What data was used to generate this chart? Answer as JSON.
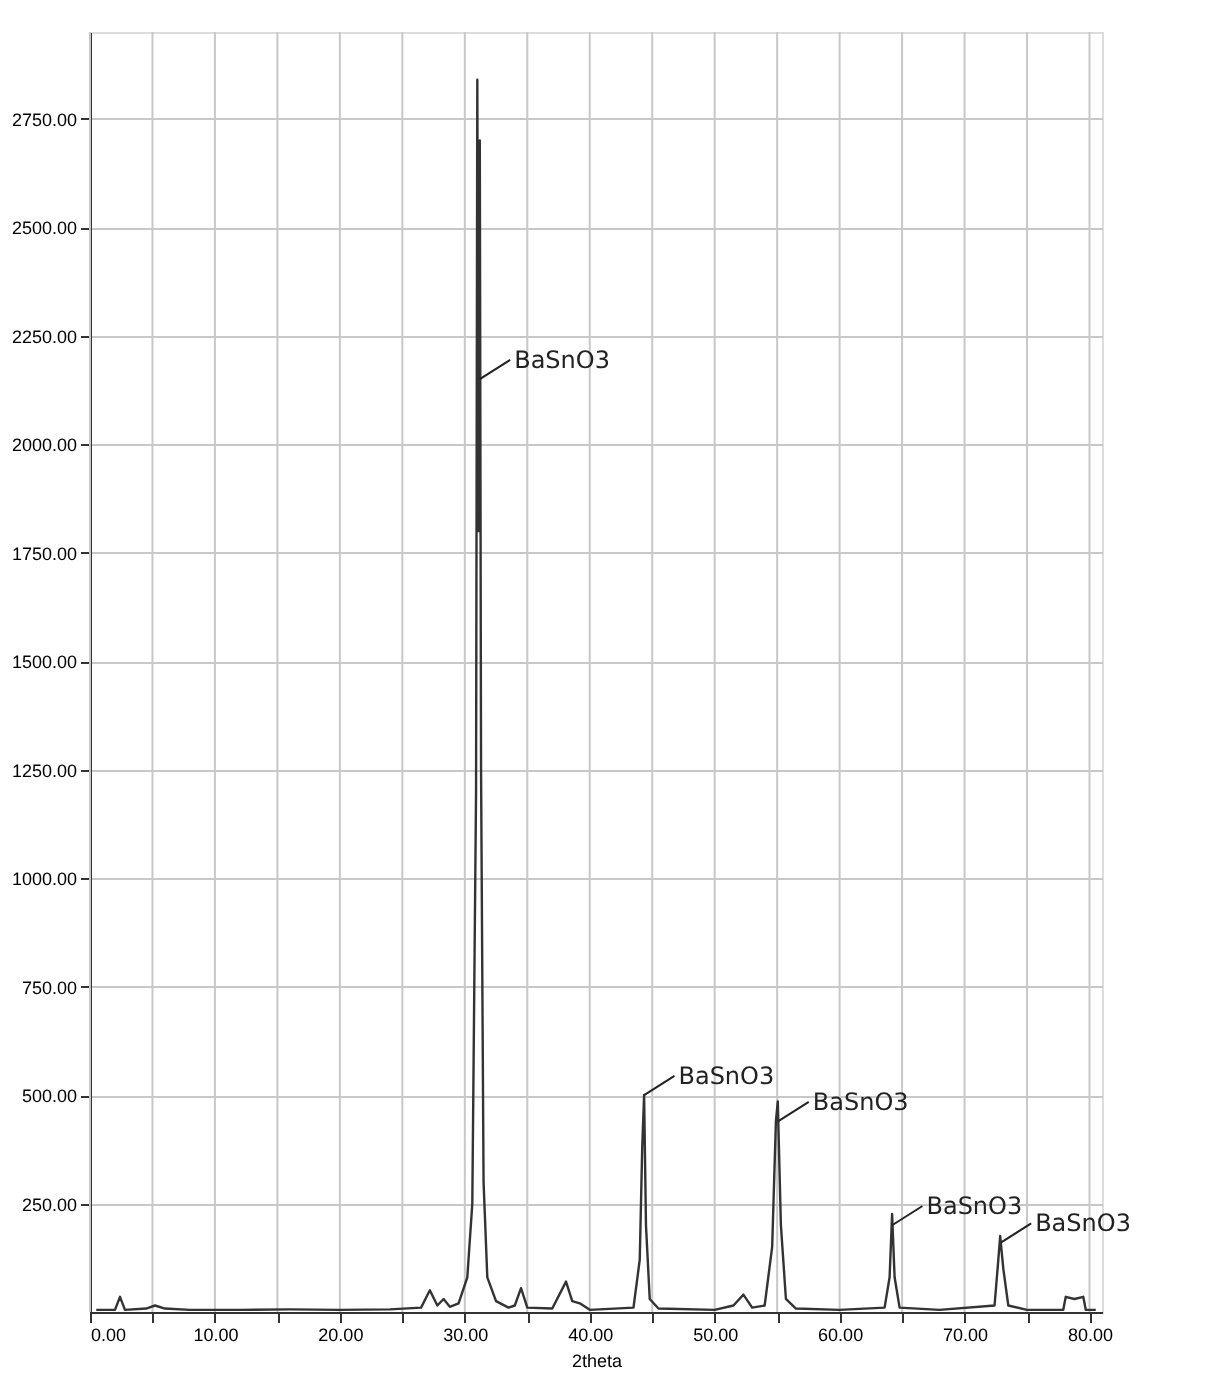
{
  "chart_data": {
    "type": "line",
    "xlabel": "2theta",
    "x": [
      0.5,
      2.0,
      2.4,
      2.8,
      4.5,
      5.2,
      6.0,
      8,
      12,
      16,
      20,
      24,
      26.5,
      27.2,
      27.8,
      28.3,
      28.8,
      29.5,
      30.2,
      30.6,
      30.9,
      31.0,
      31.1,
      31.2,
      31.3,
      31.5,
      31.8,
      32.5,
      33.5,
      34.0,
      34.5,
      35.0,
      37,
      38.1,
      38.6,
      39.2,
      40,
      43.5,
      44.0,
      44.2,
      44.35,
      44.5,
      44.8,
      45.5,
      50,
      51.5,
      52.3,
      53,
      54.0,
      54.6,
      54.9,
      55.05,
      55.3,
      55.7,
      56.5,
      60,
      63.6,
      64.0,
      64.2,
      64.4,
      64.8,
      68,
      72.4,
      72.7,
      72.85,
      73.1,
      73.5,
      75,
      77.9,
      78.1,
      78.8,
      79.5,
      79.7,
      80.5
    ],
    "series": [
      {
        "color": "#333333",
        "values": [
          5,
          5,
          35,
          5,
          8,
          15,
          8,
          5,
          5,
          6,
          5,
          6,
          10,
          50,
          15,
          30,
          12,
          20,
          80,
          250,
          1200,
          2840,
          1800,
          2700,
          1250,
          300,
          80,
          25,
          10,
          15,
          55,
          10,
          8,
          70,
          25,
          20,
          5,
          10,
          120,
          380,
          500,
          200,
          30,
          8,
          5,
          15,
          40,
          10,
          15,
          150,
          440,
          485,
          200,
          30,
          8,
          5,
          10,
          80,
          226,
          80,
          10,
          5,
          15,
          120,
          175,
          100,
          15,
          5,
          5,
          35,
          30,
          35,
          5,
          5
        ]
      }
    ],
    "xlim": [
      0,
      81
    ],
    "xticks": [
      {
        "value": 0,
        "label": "0.00"
      },
      {
        "value": 5,
        "label": null
      },
      {
        "value": 10,
        "label": "10.00"
      },
      {
        "value": 15,
        "label": null
      },
      {
        "value": 20,
        "label": "20.00"
      },
      {
        "value": 25,
        "label": null
      },
      {
        "value": 30,
        "label": "30.00"
      },
      {
        "value": 35,
        "label": null
      },
      {
        "value": 40,
        "label": "40.00"
      },
      {
        "value": 45,
        "label": null
      },
      {
        "value": 50,
        "label": "50.00"
      },
      {
        "value": 55,
        "label": null
      },
      {
        "value": 60,
        "label": "60.00"
      },
      {
        "value": 65,
        "label": null
      },
      {
        "value": 70,
        "label": "70.00"
      },
      {
        "value": 75,
        "label": null
      },
      {
        "value": 80,
        "label": "80.00"
      }
    ],
    "ylim": [
      0,
      2950
    ],
    "yticks": [
      {
        "value": 250,
        "label": "250.00"
      },
      {
        "value": 500,
        "label": "500.00"
      },
      {
        "value": 750,
        "label": "750.00"
      },
      {
        "value": 1000,
        "label": "1000.00"
      },
      {
        "value": 1250,
        "label": "1250.00"
      },
      {
        "value": 1500,
        "label": "1500.00"
      },
      {
        "value": 1750,
        "label": "1750.00"
      },
      {
        "value": 2000,
        "label": "2000.00"
      },
      {
        "value": 2250,
        "label": "2250.00"
      },
      {
        "value": 2500,
        "label": "2500.00"
      },
      {
        "value": 2750,
        "label": "2750.00"
      }
    ],
    "grid": true,
    "line_style": "solid",
    "marker": "none",
    "annotations": [
      {
        "text": "BaSnO3",
        "x": 31.2,
        "y": 2150
      },
      {
        "text": "BaSnO3",
        "x": 44.35,
        "y": 500
      },
      {
        "text": "BaSnO3",
        "x": 55.1,
        "y": 440
      },
      {
        "text": "BaSnO3",
        "x": 64.2,
        "y": 200
      },
      {
        "text": "BaSnO3",
        "x": 72.9,
        "y": 160
      }
    ]
  }
}
